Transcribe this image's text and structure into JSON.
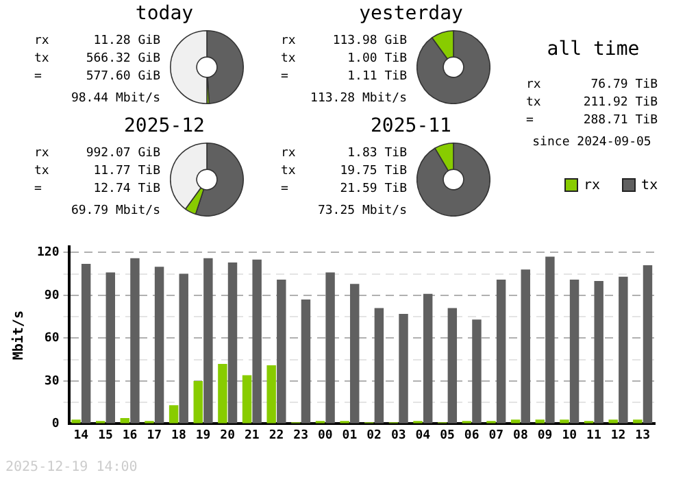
{
  "chart_data": [
    {
      "type": "donut",
      "title": "today",
      "categories": [
        null,
        null,
        null
      ],
      "values": [
        49,
        1,
        50
      ],
      "colors": [
        "#606060",
        "#88cc00",
        "#f0f0f0"
      ],
      "annotations": [
        "rx    11.28 GiB",
        "tx   566.32 GiB",
        "=    577.60 GiB",
        "98.44 Mbit/s"
      ]
    },
    {
      "type": "donut",
      "title": "yesterday",
      "categories": [
        null,
        null,
        null
      ],
      "values": [
        90,
        10,
        0
      ],
      "colors": [
        "#606060",
        "#88cc00",
        "#f0f0f0"
      ],
      "annotations": [
        "rx   113.98 GiB",
        "tx     1.00 TiB",
        "=      1.11 TiB",
        "113.28 Mbit/s"
      ]
    },
    {
      "type": "donut",
      "title": "2025-12",
      "categories": [
        null,
        null,
        null
      ],
      "values": [
        55,
        5,
        40
      ],
      "colors": [
        "#606060",
        "#88cc00",
        "#f0f0f0"
      ],
      "annotations": [
        "rx   992.07 GiB",
        "tx    11.77 TiB",
        "=     12.74 TiB",
        "69.79 Mbit/s"
      ]
    },
    {
      "type": "donut",
      "title": "2025-11",
      "categories": [
        null,
        null,
        null
      ],
      "values": [
        91.5,
        8.5,
        0
      ],
      "colors": [
        "#606060",
        "#88cc00",
        "#f0f0f0"
      ],
      "annotations": [
        "rx     1.83 TiB",
        "tx    19.75 TiB",
        "=     21.59 TiB",
        "73.25 Mbit/s"
      ]
    },
    {
      "type": "other",
      "title": "all time",
      "annotations": [
        "rx    76.79 TiB",
        "tx   211.92 TiB",
        "=    288.71 TiB",
        "since 2024-09-05"
      ]
    },
    {
      "type": "bar",
      "ylabel": "Mbit/s",
      "legend": "top right",
      "grid": "y",
      "categories": [
        "14",
        "15",
        "16",
        "17",
        "18",
        "19",
        "20",
        "21",
        "22",
        "23",
        "00",
        "01",
        "02",
        "03",
        "04",
        "05",
        "06",
        "07",
        "08",
        "09",
        "10",
        "11",
        "12",
        "13"
      ],
      "series": [
        {
          "name": "rx",
          "color": "#88cc00",
          "values": [
            3,
            2,
            4,
            2,
            13,
            30,
            42,
            34,
            41,
            1,
            2,
            2,
            1,
            1,
            2,
            1,
            2,
            2,
            3,
            3,
            3,
            2,
            3,
            3
          ]
        },
        {
          "name": "tx",
          "color": "#606060",
          "values": [
            112,
            106,
            116,
            110,
            105,
            116,
            113,
            115,
            101,
            87,
            106,
            98,
            81,
            77,
            91,
            81,
            73,
            101,
            108,
            117,
            101,
            100,
            103,
            111
          ]
        }
      ],
      "ylim": [
        0,
        124
      ],
      "yticks": [
        0,
        {
          "value": 15,
          "label": null
        },
        30,
        {
          "value": 45,
          "label": null
        },
        60,
        {
          "value": 75,
          "label": null
        },
        90,
        {
          "value": 105,
          "label": null
        },
        120
      ],
      "annotations": [
        "2025-12-19 14:00"
      ]
    }
  ]
}
